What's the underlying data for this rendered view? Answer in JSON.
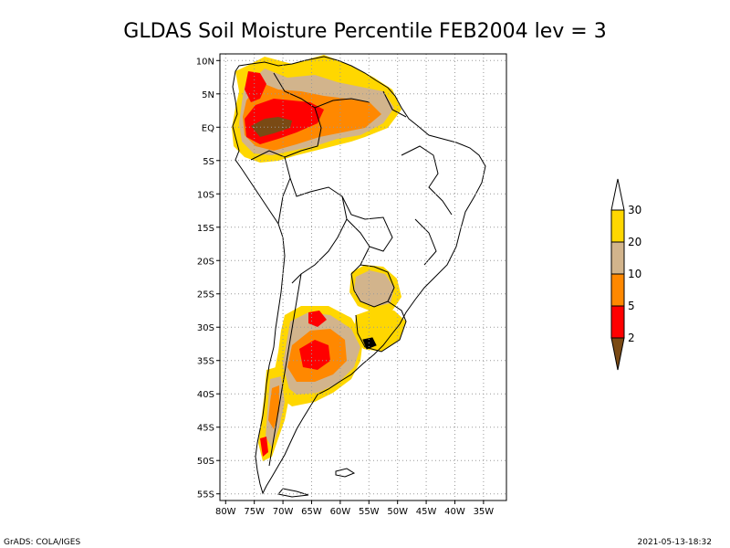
{
  "title": "GLDAS Soil Moisture Percentile FEB2004 lev = 3",
  "map": {
    "lon_range": [
      -81,
      -31
    ],
    "lat_range": [
      -56,
      11
    ],
    "lat_ticks": [
      {
        "value": 10,
        "label": "10N"
      },
      {
        "value": 5,
        "label": "5N"
      },
      {
        "value": 0,
        "label": "EQ"
      },
      {
        "value": -5,
        "label": "5S"
      },
      {
        "value": -10,
        "label": "10S"
      },
      {
        "value": -15,
        "label": "15S"
      },
      {
        "value": -20,
        "label": "20S"
      },
      {
        "value": -25,
        "label": "25S"
      },
      {
        "value": -30,
        "label": "30S"
      },
      {
        "value": -35,
        "label": "35S"
      },
      {
        "value": -40,
        "label": "40S"
      },
      {
        "value": -45,
        "label": "45S"
      },
      {
        "value": -50,
        "label": "50S"
      },
      {
        "value": -55,
        "label": "55S"
      }
    ],
    "lon_ticks": [
      {
        "value": -80,
        "label": "80W"
      },
      {
        "value": -75,
        "label": "75W"
      },
      {
        "value": -70,
        "label": "70W"
      },
      {
        "value": -65,
        "label": "65W"
      },
      {
        "value": -60,
        "label": "60W"
      },
      {
        "value": -55,
        "label": "55W"
      },
      {
        "value": -50,
        "label": "50W"
      },
      {
        "value": -45,
        "label": "45W"
      },
      {
        "value": -40,
        "label": "40W"
      },
      {
        "value": -35,
        "label": "35W"
      }
    ],
    "grid": "dotted"
  },
  "colorbar": {
    "labels": [
      "2",
      "5",
      "10",
      "20",
      "30"
    ],
    "colors": {
      "below_2": "#7a4a14",
      "2_5": "#ff0000",
      "5_10": "#ff8800",
      "10_20": "#d2b48c",
      "20_30": "#ffd700",
      "above_30": "#ffffff"
    }
  },
  "footer": {
    "left": "GrADS: COLA/IGES",
    "right": "2021-05-13-18:32"
  }
}
